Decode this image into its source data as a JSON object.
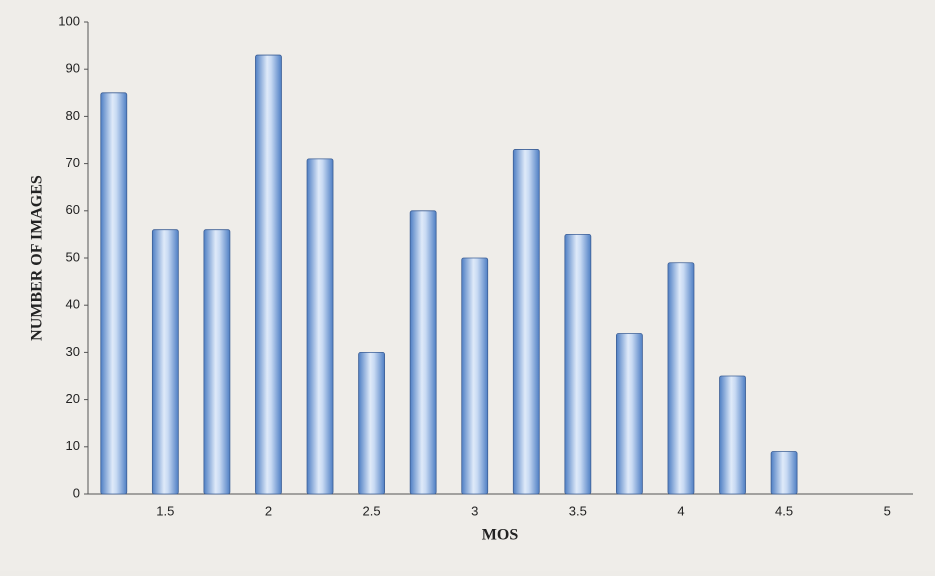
{
  "chart_data": {
    "type": "bar",
    "x_label": "MOS",
    "y_label": "NUMBER OF IMAGES",
    "categories": [
      null,
      "1.5",
      null,
      "2",
      null,
      "2.5",
      null,
      "3",
      null,
      "3.5",
      null,
      "4",
      null,
      "4.5",
      null,
      "5"
    ],
    "values": [
      85,
      56,
      56,
      93,
      71,
      30,
      60,
      50,
      73,
      55,
      34,
      49,
      25,
      9,
      null,
      null
    ],
    "color": "#4f7fc4",
    "ylim": [
      0,
      100
    ],
    "yticks": [
      0,
      10,
      20,
      30,
      40,
      50,
      60,
      70,
      80,
      90,
      100
    ],
    "grid": false
  }
}
